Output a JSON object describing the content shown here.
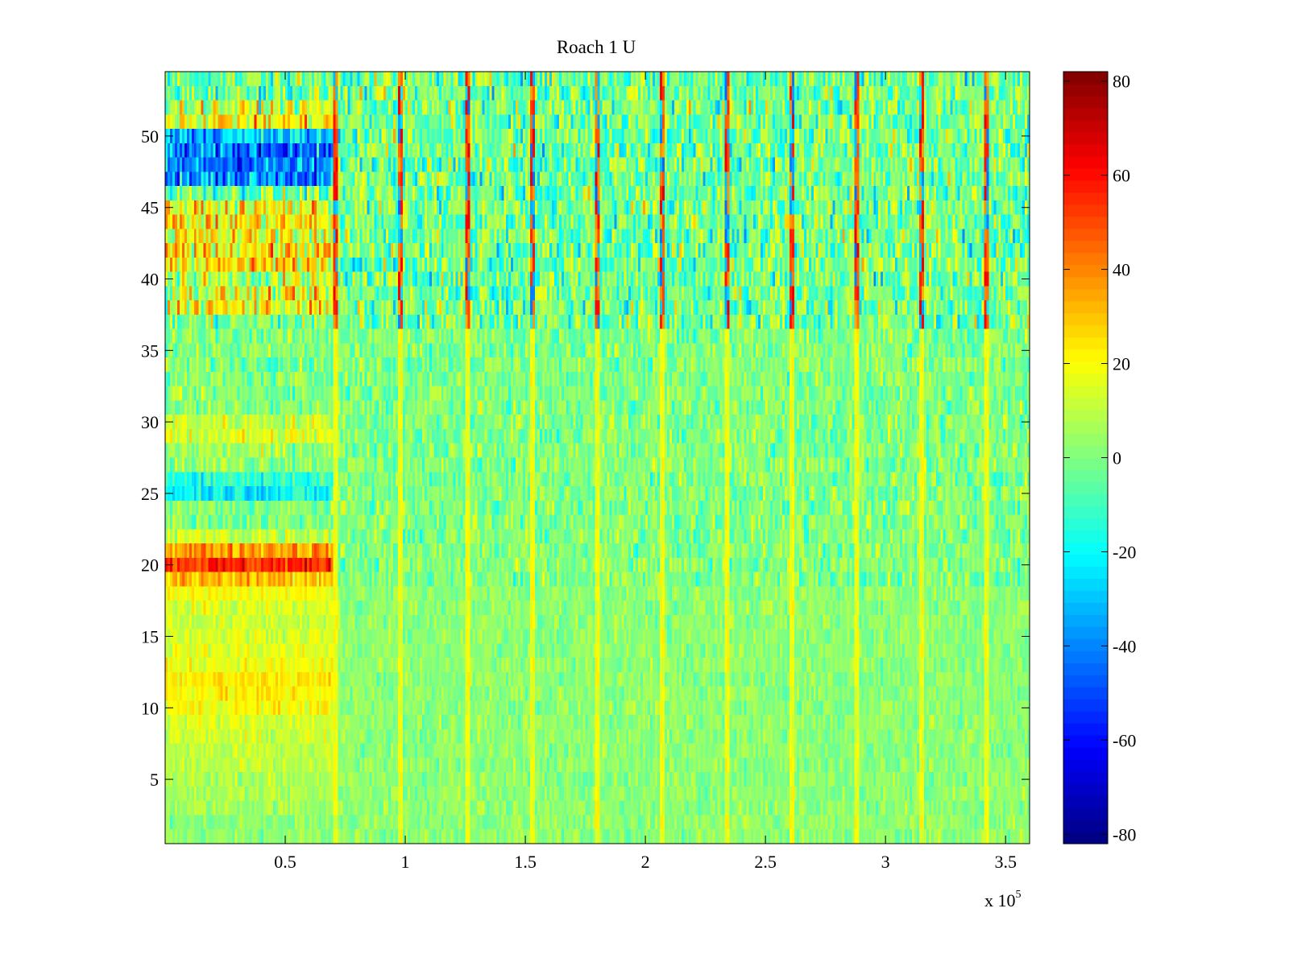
{
  "chart_data": {
    "type": "heatmap",
    "title": "Roach 1 U",
    "xlabel": "",
    "ylabel": "",
    "x_multiplier_label": "x 10",
    "x_multiplier_exponent": "5",
    "xlim": [
      0,
      360000
    ],
    "ylim": [
      0.5,
      54.5
    ],
    "x_ticks": [
      {
        "value": 50000,
        "label": "0.5"
      },
      {
        "value": 100000,
        "label": "1"
      },
      {
        "value": 150000,
        "label": "1.5"
      },
      {
        "value": 200000,
        "label": "2"
      },
      {
        "value": 250000,
        "label": "2.5"
      },
      {
        "value": 300000,
        "label": "3"
      },
      {
        "value": 350000,
        "label": "3.5"
      }
    ],
    "y_ticks": [
      {
        "value": 5,
        "label": "5"
      },
      {
        "value": 10,
        "label": "10"
      },
      {
        "value": 15,
        "label": "15"
      },
      {
        "value": 20,
        "label": "20"
      },
      {
        "value": 25,
        "label": "25"
      },
      {
        "value": 30,
        "label": "30"
      },
      {
        "value": 35,
        "label": "35"
      },
      {
        "value": 40,
        "label": "40"
      },
      {
        "value": 45,
        "label": "45"
      },
      {
        "value": 50,
        "label": "50"
      }
    ],
    "colorbar": {
      "colormap": "jet",
      "clim": [
        -82,
        82
      ],
      "ticks": [
        {
          "value": 80,
          "label": "80"
        },
        {
          "value": 60,
          "label": "60"
        },
        {
          "value": 40,
          "label": "40"
        },
        {
          "value": 20,
          "label": "20"
        },
        {
          "value": 0,
          "label": "0"
        },
        {
          "value": -20,
          "label": "-20"
        },
        {
          "value": -40,
          "label": "-40"
        },
        {
          "value": -60,
          "label": "-60"
        },
        {
          "value": -80,
          "label": "-80"
        }
      ]
    },
    "num_rows": 54,
    "initial_segment_end_x": 70000,
    "initial_segment_row_means": {
      "3": 6,
      "4": 7,
      "5": 8,
      "6": 9,
      "7": 10,
      "8": 12,
      "9": 14,
      "10": 20,
      "11": 22,
      "12": 24,
      "13": 18,
      "14": 16,
      "15": 15,
      "16": 12,
      "17": 14,
      "18": 20,
      "19": 32,
      "20": 55,
      "21": 38,
      "22": 12,
      "25": -20,
      "26": -12,
      "27": 4,
      "28": 5,
      "29": 15,
      "30": 12,
      "38": 20,
      "39": 15,
      "40": 8,
      "41": 25,
      "42": 24,
      "43": 18,
      "44": 22,
      "45": 18,
      "47": -38,
      "48": -42,
      "49": -44,
      "50": -30,
      "51": 22,
      "52": 12
    },
    "spike_columns_x": [
      71000,
      98000,
      126000,
      153000,
      180000,
      207000,
      234000,
      261000,
      288000,
      315000,
      342000
    ],
    "spike_column_values": {
      "low_rows": 20,
      "upper_rows": 55
    },
    "background_row_means": {
      "low_rows": 2,
      "mid_rows": 0,
      "high_rows": -2
    },
    "noise_amplitude": {
      "low_rows": 5,
      "mid_rows": 8,
      "high_rows": 14
    }
  }
}
